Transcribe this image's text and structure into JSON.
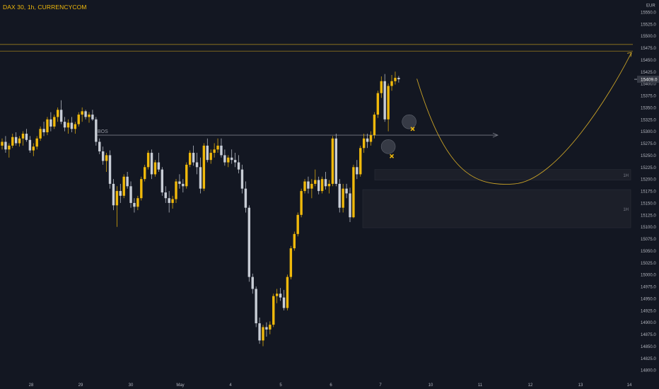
{
  "header": {
    "title": "DAX 30, 1h, CURRENCYCOM"
  },
  "colors": {
    "background": "#131722",
    "bullish": "#f0b90b",
    "bearish": "#c8cdd6",
    "price_tag_bg": "#363a45",
    "zone_fill": "#1c1f29",
    "projection": "#c9a227"
  },
  "chart_data": {
    "type": "candlestick",
    "title": "DAX 30, 1h, CURRENCYCOM",
    "currency": "EUR",
    "ylim": [
      14790,
      15575
    ],
    "y_ticks": [
      14800,
      14825,
      14850,
      14875,
      14900,
      14925,
      14950,
      14975,
      15000,
      15025,
      15050,
      15075,
      15100,
      15125,
      15150,
      15175,
      15200,
      15225,
      15250,
      15275,
      15300,
      15325,
      15350,
      15375,
      15400,
      15425,
      15450,
      15475,
      15500,
      15525,
      15550
    ],
    "y_ticks_label_sparse": [
      15550.0,
      15525.0,
      15500.0,
      15475.0,
      15450.0,
      15425.0,
      15400.0,
      15375.0,
      15350.0,
      15325.0,
      15300.0,
      15275.0,
      15250.0,
      15225.0,
      15200.0,
      15175.0,
      15150.0,
      15125.0,
      15100.0,
      15075.0,
      15050.0,
      15025.0,
      15000.0,
      14975.0,
      14950.0,
      14925.0,
      14900.0,
      14875.0,
      14850.0,
      14825.0,
      14800.0
    ],
    "x_labels": [
      "28",
      "29",
      "30",
      "May",
      "4",
      "5",
      "6",
      "7",
      "10",
      "11",
      "12",
      "13",
      "14"
    ],
    "current_price": "15409.0",
    "bos_label": "BOS",
    "bos_level": 15292,
    "resistance_levels": [
      15482,
      15468
    ],
    "zones": [
      {
        "label": "1H",
        "top": 15220,
        "bottom": 15198
      },
      {
        "label": "1H",
        "top": 15178,
        "bottom": 15098
      }
    ],
    "candles": [
      [
        15270,
        15285,
        15262,
        15278
      ],
      [
        15278,
        15290,
        15255,
        15262
      ],
      [
        15262,
        15275,
        15245,
        15270
      ],
      [
        15270,
        15295,
        15265,
        15288
      ],
      [
        15288,
        15298,
        15270,
        15275
      ],
      [
        15275,
        15290,
        15268,
        15285
      ],
      [
        15285,
        15300,
        15270,
        15295
      ],
      [
        15295,
        15305,
        15278,
        15282
      ],
      [
        15282,
        15290,
        15255,
        15260
      ],
      [
        15260,
        15275,
        15248,
        15268
      ],
      [
        15268,
        15290,
        15262,
        15285
      ],
      [
        15285,
        15310,
        15280,
        15305
      ],
      [
        15305,
        15320,
        15290,
        15298
      ],
      [
        15298,
        15330,
        15292,
        15325
      ],
      [
        15325,
        15340,
        15300,
        15310
      ],
      [
        15310,
        15335,
        15305,
        15330
      ],
      [
        15330,
        15350,
        15320,
        15345
      ],
      [
        15345,
        15365,
        15315,
        15320
      ],
      [
        15320,
        15330,
        15300,
        15308
      ],
      [
        15308,
        15325,
        15295,
        15318
      ],
      [
        15318,
        15330,
        15298,
        15305
      ],
      [
        15305,
        15320,
        15295,
        15315
      ],
      [
        15315,
        15340,
        15310,
        15335
      ],
      [
        15335,
        15350,
        15320,
        15342
      ],
      [
        15342,
        15345,
        15325,
        15330
      ],
      [
        15330,
        15340,
        15318,
        15335
      ],
      [
        15335,
        15345,
        15322,
        15325
      ],
      [
        15325,
        15330,
        15270,
        15278
      ],
      [
        15278,
        15285,
        15252,
        15258
      ],
      [
        15258,
        15268,
        15230,
        15238
      ],
      [
        15238,
        15255,
        15215,
        15250
      ],
      [
        15250,
        15260,
        15180,
        15190
      ],
      [
        15190,
        15200,
        15135,
        15145
      ],
      [
        15145,
        15185,
        15100,
        15175
      ],
      [
        15175,
        15190,
        15150,
        15165
      ],
      [
        15165,
        15210,
        15160,
        15205
      ],
      [
        15205,
        15215,
        15180,
        15185
      ],
      [
        15185,
        15195,
        15140,
        15150
      ],
      [
        15150,
        15160,
        15130,
        15142
      ],
      [
        15142,
        15165,
        15135,
        15160
      ],
      [
        15160,
        15205,
        15155,
        15200
      ],
      [
        15200,
        15230,
        15195,
        15225
      ],
      [
        15225,
        15260,
        15220,
        15255
      ],
      [
        15255,
        15262,
        15200,
        15210
      ],
      [
        15210,
        15240,
        15205,
        15235
      ],
      [
        15235,
        15255,
        15215,
        15220
      ],
      [
        15220,
        15225,
        15165,
        15172
      ],
      [
        15172,
        15185,
        15150,
        15160
      ],
      [
        15160,
        15175,
        15130,
        15150
      ],
      [
        15150,
        15165,
        15138,
        15158
      ],
      [
        15158,
        15200,
        15150,
        15195
      ],
      [
        15195,
        15210,
        15180,
        15190
      ],
      [
        15190,
        15200,
        15172,
        15185
      ],
      [
        15185,
        15235,
        15180,
        15230
      ],
      [
        15230,
        15260,
        15225,
        15255
      ],
      [
        15255,
        15270,
        15228,
        15235
      ],
      [
        15235,
        15255,
        15210,
        15225
      ],
      [
        15225,
        15245,
        15170,
        15180
      ],
      [
        15180,
        15275,
        15175,
        15270
      ],
      [
        15270,
        15285,
        15235,
        15240
      ],
      [
        15240,
        15262,
        15232,
        15255
      ],
      [
        15255,
        15275,
        15245,
        15262
      ],
      [
        15262,
        15285,
        15255,
        15270
      ],
      [
        15270,
        15285,
        15245,
        15250
      ],
      [
        15250,
        15262,
        15228,
        15235
      ],
      [
        15235,
        15250,
        15225,
        15245
      ],
      [
        15245,
        15262,
        15232,
        15240
      ],
      [
        15240,
        15255,
        15225,
        15235
      ],
      [
        15235,
        15250,
        15212,
        15220
      ],
      [
        15220,
        15230,
        15170,
        15180
      ],
      [
        15180,
        15195,
        15130,
        15140
      ],
      [
        15140,
        15145,
        14985,
        14995
      ],
      [
        14995,
        15002,
        14960,
        14970
      ],
      [
        14970,
        14975,
        14890,
        14898
      ],
      [
        14898,
        14910,
        14855,
        14862
      ],
      [
        14862,
        14895,
        14850,
        14890
      ],
      [
        14890,
        14900,
        14870,
        14885
      ],
      [
        14885,
        14902,
        14875,
        14895
      ],
      [
        14895,
        14960,
        14890,
        14955
      ],
      [
        14955,
        14970,
        14940,
        14960
      ],
      [
        14960,
        14972,
        14945,
        14952
      ],
      [
        14952,
        14968,
        14925,
        14930
      ],
      [
        14930,
        15000,
        14925,
        14995
      ],
      [
        14995,
        15060,
        14990,
        15055
      ],
      [
        15055,
        15090,
        15050,
        15085
      ],
      [
        15085,
        15130,
        15080,
        15125
      ],
      [
        15125,
        15180,
        15120,
        15175
      ],
      [
        15175,
        15200,
        15170,
        15195
      ],
      [
        15195,
        15205,
        15170,
        15180
      ],
      [
        15180,
        15200,
        15160,
        15190
      ],
      [
        15190,
        15220,
        15185,
        15198
      ],
      [
        15198,
        15205,
        15168,
        15175
      ],
      [
        15175,
        15205,
        15170,
        15200
      ],
      [
        15200,
        15215,
        15178,
        15185
      ],
      [
        15185,
        15198,
        15170,
        15190
      ],
      [
        15190,
        15290,
        15185,
        15285
      ],
      [
        15285,
        15295,
        15185,
        15190
      ],
      [
        15190,
        15200,
        15130,
        15140
      ],
      [
        15140,
        15190,
        15130,
        15180
      ],
      [
        15180,
        15190,
        15160,
        15170
      ],
      [
        15170,
        15182,
        15110,
        15120
      ],
      [
        15120,
        15230,
        15118,
        15225
      ],
      [
        15225,
        15240,
        15200,
        15210
      ],
      [
        15210,
        15270,
        15205,
        15265
      ],
      [
        15265,
        15295,
        15255,
        15285
      ],
      [
        15285,
        15295,
        15265,
        15278
      ],
      [
        15278,
        15300,
        15270,
        15292
      ],
      [
        15292,
        15340,
        15285,
        15335
      ],
      [
        15335,
        15385,
        15328,
        15380
      ],
      [
        15380,
        15415,
        15370,
        15405
      ],
      [
        15405,
        15420,
        15320,
        15325
      ],
      [
        15325,
        15400,
        15300,
        15395
      ],
      [
        15395,
        15418,
        15385,
        15405
      ],
      [
        15405,
        15425,
        15398,
        15412
      ],
      [
        15412,
        15416,
        15402,
        15409
      ]
    ],
    "markers": [
      {
        "type": "circle",
        "candle": 111,
        "price": 15268
      },
      {
        "type": "circle",
        "candle": 117,
        "price": 15320
      },
      {
        "type": "x",
        "candle": 112,
        "price": 15248
      },
      {
        "type": "x",
        "candle": 118,
        "price": 15305
      }
    ],
    "projection": {
      "from_candle": 118,
      "from_price": 15410,
      "low_candle_offset": 26,
      "low_price": 15190,
      "to_candle_offset": 62,
      "to_price": 15465
    }
  }
}
